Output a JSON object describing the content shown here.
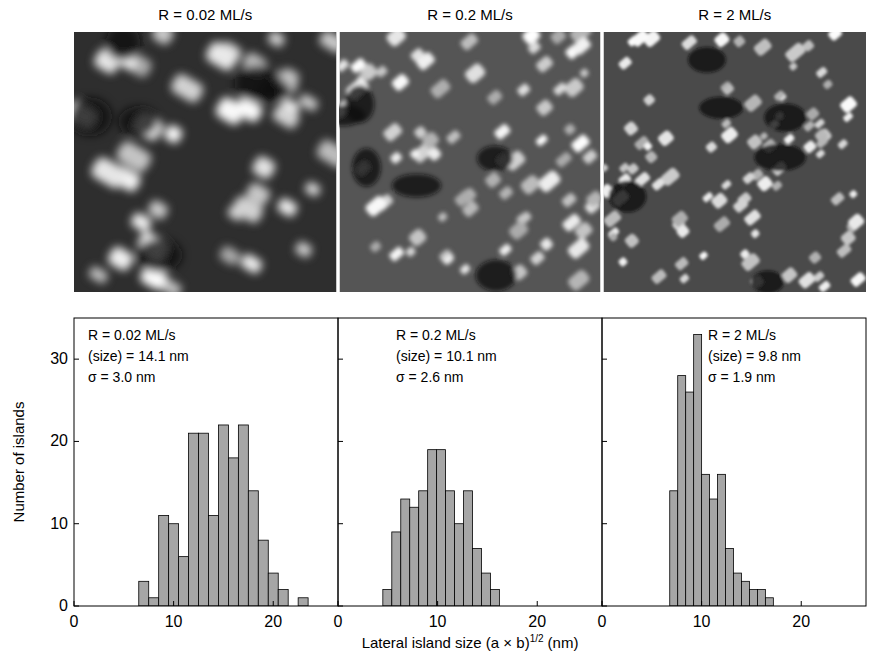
{
  "images": [
    {
      "title": "R = 0.02 ML/s"
    },
    {
      "title": "R = 0.2 ML/s"
    },
    {
      "title": "R = 2 ML/s"
    }
  ],
  "x_label": {
    "text": "Lateral island size (a × b)",
    "superscript": "1/2",
    "unit": "(nm)"
  },
  "chart_data": [
    {
      "type": "histogram",
      "y_label": "Number of islands",
      "annotations": [
        "R = 0.02 ML/s",
        "(size) = 14.1 nm",
        "σ = 3.0 nm"
      ],
      "bins": [
        6.5,
        7.5,
        8.5,
        9.5,
        10.5,
        11.5,
        12.5,
        13.5,
        14.5,
        15.5,
        16.5,
        17.5,
        18.5,
        19.5,
        20.5,
        21.5,
        22.5,
        23.5
      ],
      "values": [
        3,
        1,
        11,
        10,
        6,
        21,
        21,
        11,
        22,
        18,
        22,
        14,
        8,
        4,
        2,
        0,
        1
      ],
      "color": "#a6a6a6",
      "xlim": [
        0,
        26.5
      ],
      "xticks": [
        0,
        10,
        20
      ],
      "ylim": [
        0,
        35
      ],
      "yticks": [
        0,
        10,
        20,
        30
      ],
      "grid": false
    },
    {
      "type": "histogram",
      "annotations": [
        "R = 0.2 ML/s",
        "(size) = 10.1 nm",
        "σ = 2.6 nm"
      ],
      "bins": [
        4.5,
        5.4,
        6.3,
        7.2,
        8.1,
        9.0,
        9.9,
        10.8,
        11.7,
        12.6,
        13.5,
        14.4,
        15.3,
        16.2
      ],
      "values": [
        2,
        9,
        13,
        12,
        14,
        19,
        19,
        14,
        10,
        14,
        7,
        4,
        2
      ],
      "color": "#a6a6a6",
      "xlim": [
        0,
        26.5
      ],
      "xticks": [
        0,
        10,
        20
      ],
      "ylim": [
        0,
        35
      ],
      "yticks": [
        0,
        10,
        20,
        30
      ],
      "grid": false,
      "tick_labels": "x"
    },
    {
      "type": "histogram",
      "annotations": [
        "R = 2 ML/s",
        "(size) = 9.8 nm",
        "σ = 1.9 nm"
      ],
      "bins": [
        6.8,
        7.6,
        8.4,
        9.2,
        10.0,
        10.8,
        11.6,
        12.4,
        13.2,
        14.0,
        14.8,
        15.6,
        16.4,
        17.2
      ],
      "values": [
        14,
        28,
        26,
        33,
        16,
        13,
        16,
        7,
        4,
        3,
        2,
        2,
        1
      ],
      "color": "#a6a6a6",
      "xlim": [
        0,
        26.5
      ],
      "xticks": [
        0,
        10,
        20
      ],
      "ylim": [
        0,
        35
      ],
      "yticks": [
        0,
        10,
        20,
        30
      ],
      "grid": false,
      "tick_labels": "x"
    }
  ]
}
